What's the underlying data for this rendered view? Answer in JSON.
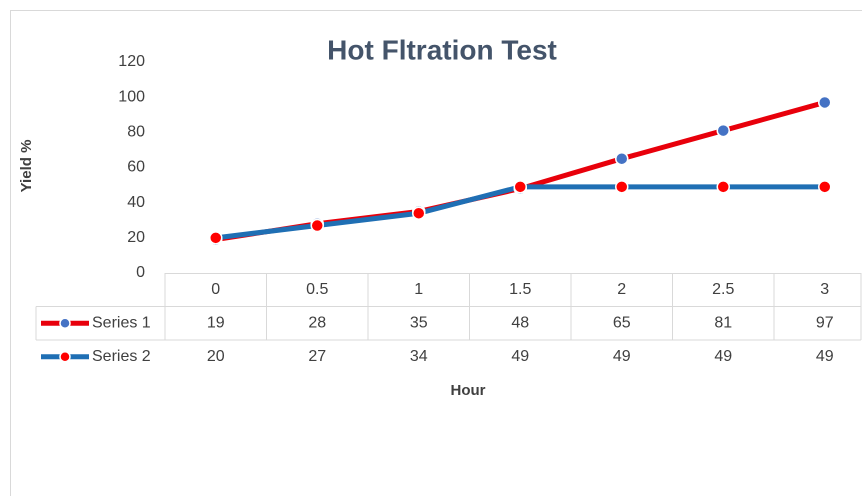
{
  "chart_data": {
    "type": "line",
    "title": "Hot Fltration Test",
    "x_label": "Hour",
    "y_label": "Yield %",
    "categories": [
      "0",
      "0.5",
      "1",
      "1.5",
      "2",
      "2.5",
      "3"
    ],
    "series": [
      {
        "name": "Series 1",
        "color": "#e8000b",
        "marker_color": "#4472c4",
        "values": [
          19,
          28,
          35,
          48,
          65,
          81,
          97
        ]
      },
      {
        "name": "Series 2",
        "color": "#1f6fb4",
        "marker_color": "#ff0000",
        "values": [
          20,
          27,
          34,
          49,
          49,
          49,
          49
        ]
      }
    ],
    "ylim": [
      0,
      120
    ],
    "yticks": [
      0,
      20,
      40,
      60,
      80,
      100,
      120
    ],
    "grid": false,
    "data_table": true
  }
}
